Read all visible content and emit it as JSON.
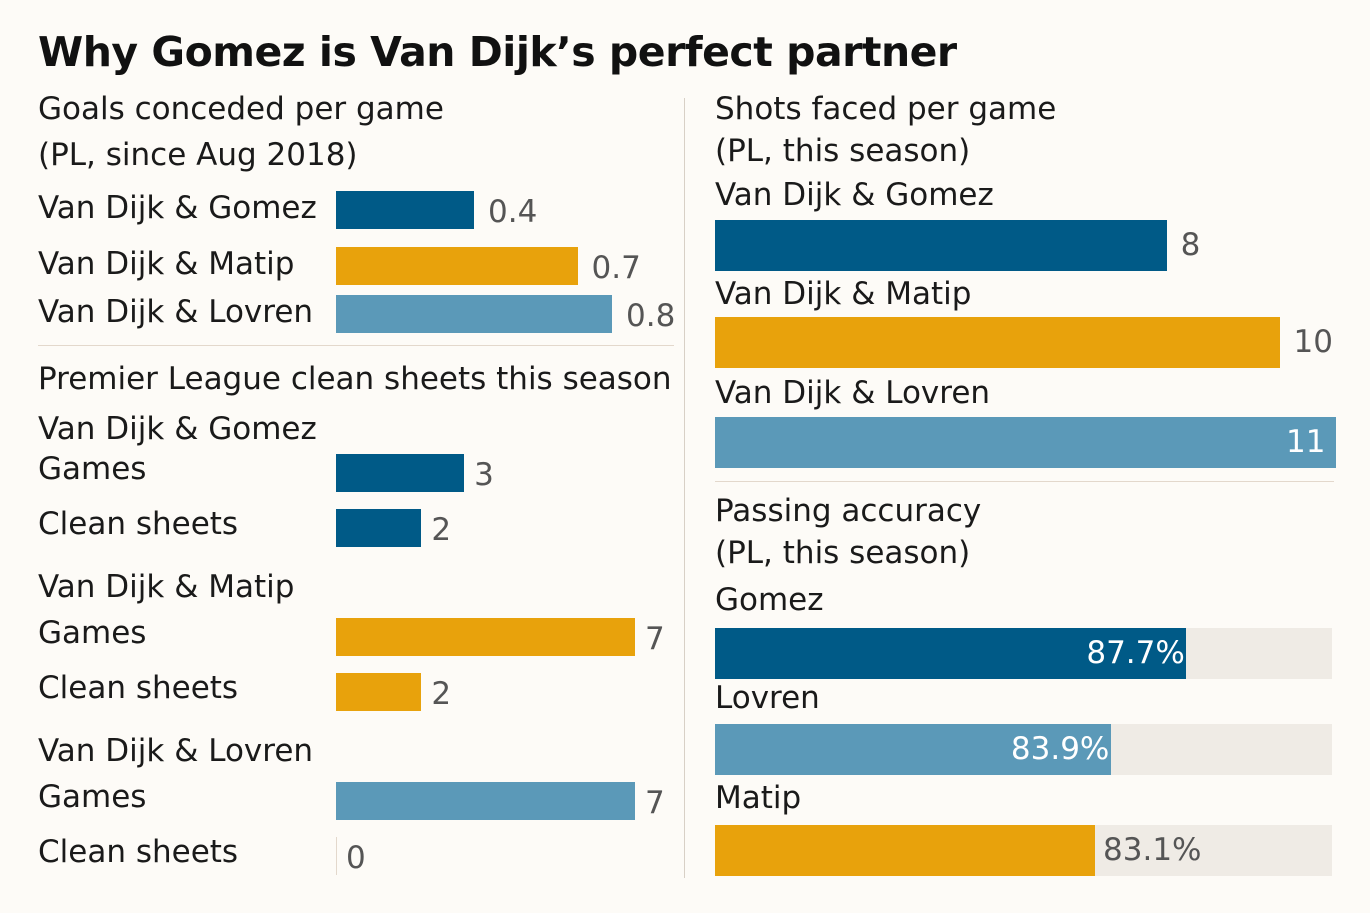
{
  "title": "Why Gomez is Van Dijk’s perfect partner",
  "colors": {
    "gomez": "#005a87",
    "matip": "#e8a20c",
    "lovren": "#5b99b8",
    "track": "#efebe5",
    "background": "#fdfbf7"
  },
  "chart_data": [
    {
      "type": "bar",
      "title": "Goals conceded per game",
      "subtitle": "(PL, since Aug 2018)",
      "categories": [
        "Van Dijk & Gomez",
        "Van Dijk & Matip",
        "Van Dijk & Lovren"
      ],
      "values": [
        0.4,
        0.7,
        0.8
      ],
      "value_labels": [
        "0.4",
        "0.7",
        "0.8"
      ],
      "colors": [
        "gomez",
        "matip",
        "lovren"
      ],
      "xlim": [
        0,
        0.8
      ]
    },
    {
      "type": "bar",
      "title": "Premier League clean sheets this season",
      "groups": [
        {
          "name": "Van Dijk & Gomez",
          "color": "gomez",
          "rows": [
            {
              "label": "Games",
              "value": 3,
              "value_label": "3"
            },
            {
              "label": "Clean sheets",
              "value": 2,
              "value_label": "2"
            }
          ]
        },
        {
          "name": "Van Dijk & Matip",
          "color": "matip",
          "rows": [
            {
              "label": "Games",
              "value": 7,
              "value_label": "7"
            },
            {
              "label": "Clean sheets",
              "value": 2,
              "value_label": "2"
            }
          ]
        },
        {
          "name": "Van Dijk & Lovren",
          "color": "lovren",
          "rows": [
            {
              "label": "Games",
              "value": 7,
              "value_label": "7"
            },
            {
              "label": "Clean sheets",
              "value": 0,
              "value_label": "0"
            }
          ]
        }
      ],
      "xlim": [
        0,
        7
      ]
    },
    {
      "type": "bar",
      "title": "Shots faced per game",
      "subtitle": "(PL, this season)",
      "categories": [
        "Van Dijk & Gomez",
        "Van Dijk & Matip",
        "Van Dijk & Lovren"
      ],
      "values": [
        8,
        10,
        11
      ],
      "value_labels": [
        "8",
        "10",
        "11"
      ],
      "colors": [
        "gomez",
        "matip",
        "lovren"
      ],
      "xlim": [
        0,
        11
      ]
    },
    {
      "type": "bar",
      "title": "Passing accuracy",
      "subtitle": "(PL, this season)",
      "categories": [
        "Gomez",
        "Lovren",
        "Matip"
      ],
      "values": [
        87.7,
        83.9,
        83.1
      ],
      "value_labels": [
        "87.7%",
        "83.9%",
        "83.1%"
      ],
      "colors": [
        "gomez",
        "lovren",
        "matip"
      ],
      "xlim": [
        0,
        100
      ]
    }
  ]
}
